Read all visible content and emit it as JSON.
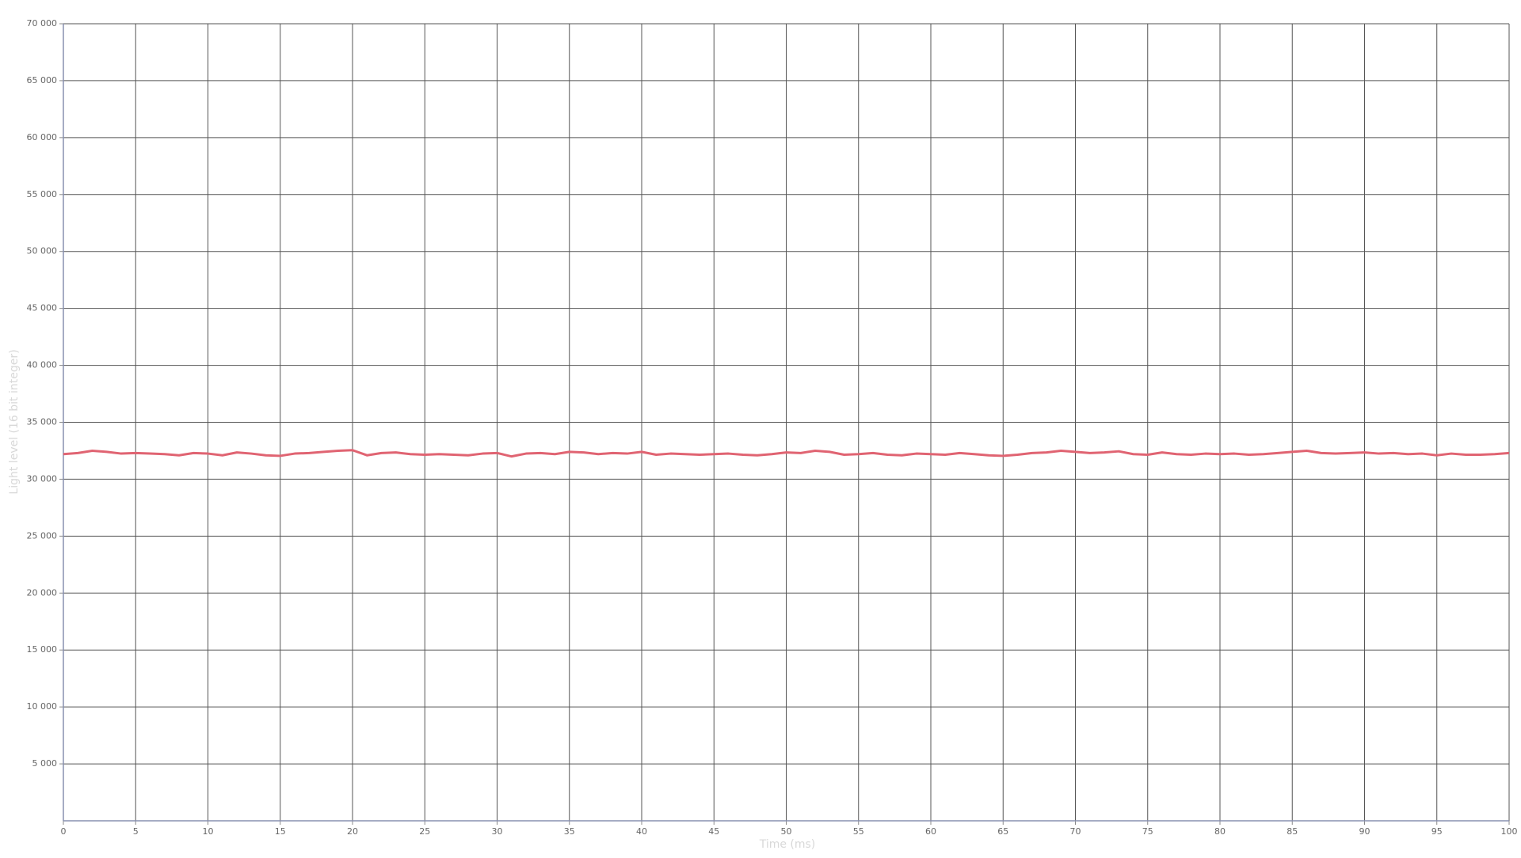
{
  "chart_data": {
    "type": "line",
    "x_label": "Time (ms)",
    "y_label": "Light level (16 bit integer)",
    "x": [
      0,
      1,
      2,
      3,
      4,
      5,
      6,
      7,
      8,
      9,
      10,
      11,
      12,
      13,
      14,
      15,
      16,
      17,
      18,
      19,
      20,
      21,
      22,
      23,
      24,
      25,
      26,
      27,
      28,
      29,
      30,
      31,
      32,
      33,
      34,
      35,
      36,
      37,
      38,
      39,
      40,
      41,
      42,
      43,
      44,
      45,
      46,
      47,
      48,
      49,
      50,
      51,
      52,
      53,
      54,
      55,
      56,
      57,
      58,
      59,
      60,
      61,
      62,
      63,
      64,
      65,
      66,
      67,
      68,
      69,
      70,
      71,
      72,
      73,
      74,
      75,
      76,
      77,
      78,
      79,
      80,
      81,
      82,
      83,
      84,
      85,
      86,
      87,
      88,
      89,
      90,
      91,
      92,
      93,
      94,
      95,
      96,
      97,
      98,
      99,
      100
    ],
    "series": [
      {
        "name": "Light level",
        "color": "#e06472",
        "values": [
          32200,
          32300,
          32500,
          32400,
          32250,
          32300,
          32250,
          32200,
          32100,
          32300,
          32250,
          32100,
          32350,
          32250,
          32100,
          32050,
          32250,
          32300,
          32400,
          32500,
          32550,
          32100,
          32300,
          32350,
          32200,
          32150,
          32200,
          32150,
          32100,
          32250,
          32300,
          32000,
          32250,
          32300,
          32200,
          32400,
          32350,
          32200,
          32300,
          32250,
          32400,
          32150,
          32250,
          32200,
          32150,
          32200,
          32250,
          32150,
          32100,
          32200,
          32350,
          32300,
          32500,
          32400,
          32150,
          32200,
          32300,
          32150,
          32100,
          32250,
          32200,
          32150,
          32300,
          32200,
          32100,
          32050,
          32150,
          32300,
          32350,
          32500,
          32400,
          32300,
          32350,
          32450,
          32200,
          32150,
          32350,
          32200,
          32150,
          32250,
          32200,
          32250,
          32150,
          32200,
          32300,
          32400,
          32500,
          32300,
          32250,
          32300,
          32350,
          32250,
          32300,
          32200,
          32250,
          32100,
          32250,
          32150,
          32150,
          32200,
          32300
        ]
      }
    ],
    "xlim": [
      0,
      100
    ],
    "xticks": [
      0,
      5,
      10,
      15,
      20,
      25,
      30,
      35,
      40,
      45,
      50,
      55,
      60,
      65,
      70,
      75,
      80,
      85,
      90,
      95,
      100
    ],
    "ylim": [
      0,
      70000
    ],
    "yticks": [
      {
        "value": 5000,
        "label": "5 000"
      },
      {
        "value": 10000,
        "label": "10 000"
      },
      {
        "value": 15000,
        "label": "15 000"
      },
      {
        "value": 20000,
        "label": "20 000"
      },
      {
        "value": 25000,
        "label": "25 000"
      },
      {
        "value": 30000,
        "label": "30 000"
      },
      {
        "value": 35000,
        "label": "35 000"
      },
      {
        "value": 40000,
        "label": "40 000"
      },
      {
        "value": 45000,
        "label": "45 000"
      },
      {
        "value": 50000,
        "label": "50 000"
      },
      {
        "value": 55000,
        "label": "55 000"
      },
      {
        "value": 60000,
        "label": "60 000"
      },
      {
        "value": 65000,
        "label": "65 000"
      },
      {
        "value": 70000,
        "label": "70 000"
      }
    ],
    "grid": true
  }
}
